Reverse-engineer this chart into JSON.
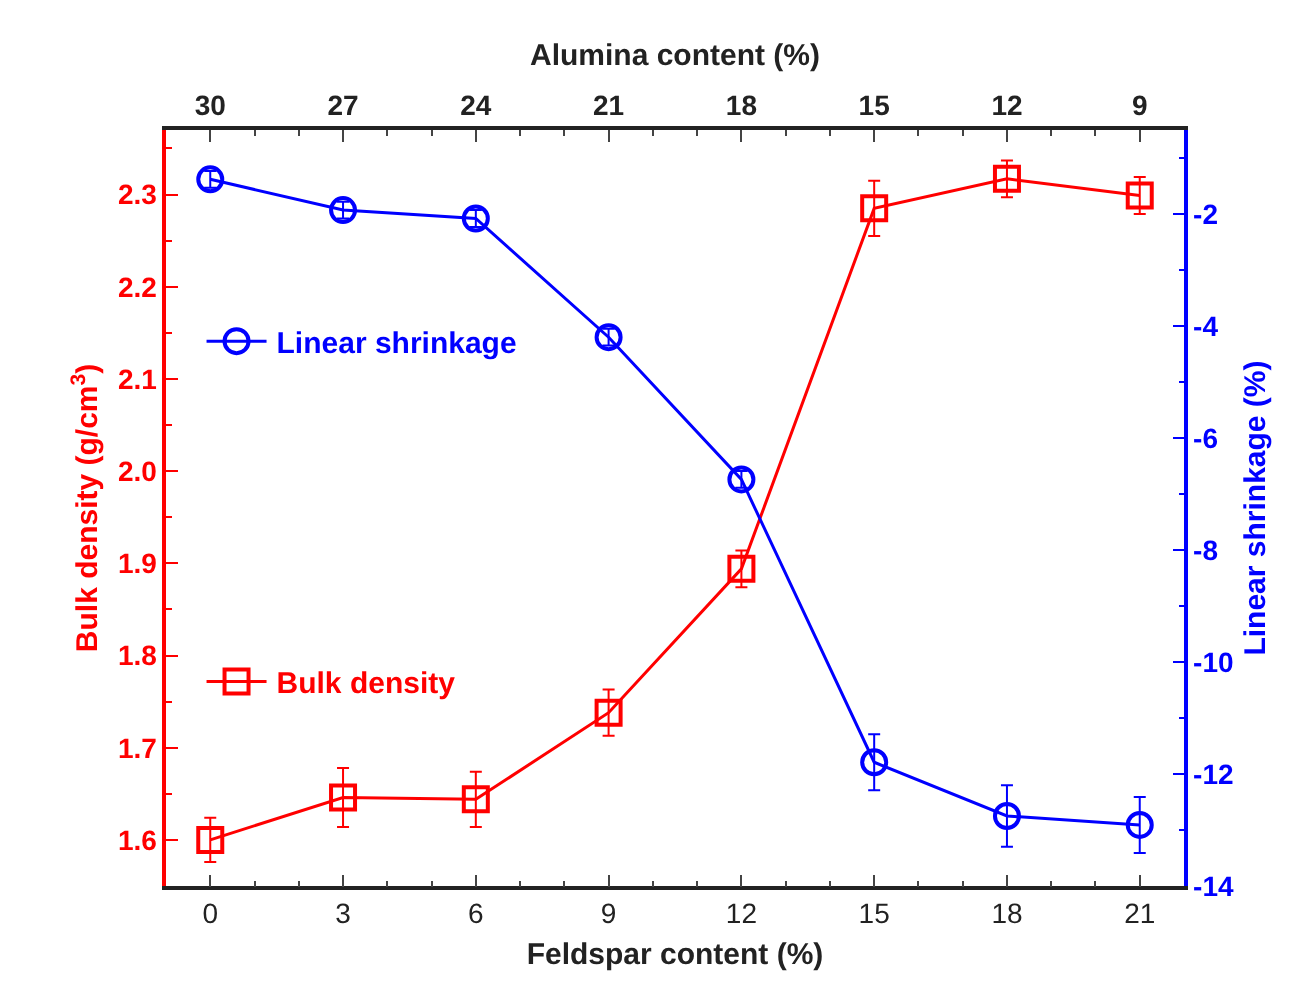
{
  "chart_data": {
    "type": "line",
    "xlabel": "Feldspar content (%)",
    "x2label": "Alumina content (%)",
    "ylabel": "Bulk density (g/cm$^{3}$)",
    "y2label": "Linear shrinkage (%)",
    "x": [
      0,
      3,
      6,
      9,
      12,
      15,
      18,
      21
    ],
    "xlim": [
      -1,
      22
    ],
    "xticks": [
      0,
      3,
      6,
      9,
      12,
      15,
      18,
      21
    ],
    "x2lim": [
      31,
      8
    ],
    "x2ticks": [
      30,
      27,
      24,
      21,
      18,
      15,
      12,
      9
    ],
    "ylim": [
      1.55,
      2.37
    ],
    "yticks": [
      {
        "value": 1.6,
        "label": "1.6"
      },
      {
        "value": 1.7,
        "label": "1.7"
      },
      {
        "value": 1.8,
        "label": "1.8"
      },
      {
        "value": 1.9,
        "label": "1.9"
      },
      {
        "value": 2.0,
        "label": "2.0"
      },
      {
        "value": 2.1,
        "label": "2.1"
      },
      {
        "value": 2.2,
        "label": "2.2"
      },
      {
        "value": 2.3,
        "label": "2.3"
      }
    ],
    "y2lim": [
      -14,
      -0.5
    ],
    "y2ticks": [
      -14,
      -12,
      -10,
      -8,
      -6,
      -4,
      -2
    ],
    "legend": "left",
    "grid": false,
    "line_style": "solid",
    "series": [
      {
        "name": "Bulk density",
        "color": "#ff0000",
        "marker": "square",
        "values": [
          1.6,
          1.646,
          1.644,
          1.738,
          1.894,
          2.285,
          2.317,
          2.299
        ],
        "errors": [
          0.024,
          0.032,
          0.03,
          0.025,
          0.02,
          0.03,
          0.02,
          0.02
        ]
      },
      {
        "name": "Linear shrinkage",
        "color": "#0000ff",
        "marker": "circle",
        "axis": "y2",
        "values": [
          -1.38,
          -1.93,
          -2.08,
          -4.2,
          -6.74,
          -11.79,
          -12.75,
          -12.91
        ],
        "errors": [
          0.15,
          0.15,
          0.15,
          0.15,
          0.15,
          0.5,
          0.55,
          0.5
        ]
      }
    ]
  }
}
